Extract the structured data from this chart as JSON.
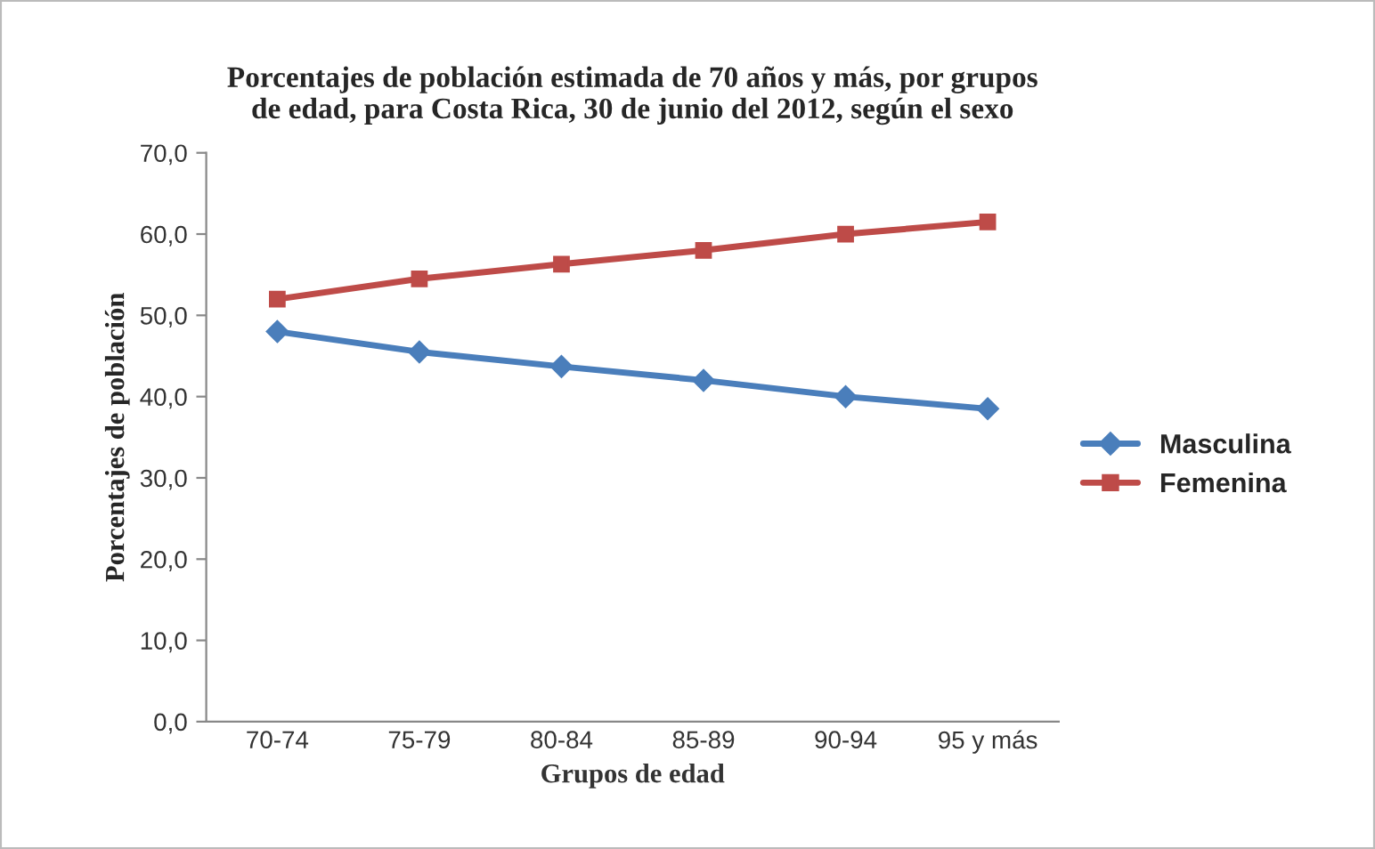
{
  "chart_data": {
    "type": "line",
    "title": "Porcentajes de población estimada de 70 años y más, por grupos\nde edad, para Costa Rica, 30 de junio del 2012, según el sexo",
    "xlabel": "Grupos de edad",
    "ylabel": "Porcentajes de población",
    "categories": [
      "70-74",
      "75-79",
      "80-84",
      "85-89",
      "90-94",
      "95 y más"
    ],
    "series": [
      {
        "name": "Masculina",
        "color": "#4a7ebb",
        "marker": "diamond",
        "values": [
          48.0,
          45.5,
          43.7,
          42.0,
          40.0,
          38.5
        ]
      },
      {
        "name": "Femenina",
        "color": "#be4b48",
        "marker": "square",
        "values": [
          52.0,
          54.5,
          56.3,
          58.0,
          60.0,
          61.5
        ]
      }
    ],
    "ylim": [
      0,
      70
    ],
    "yticks": [
      {
        "value": 0,
        "label": "0,0"
      },
      {
        "value": 10,
        "label": "10,0"
      },
      {
        "value": 20,
        "label": "20,0"
      },
      {
        "value": 30,
        "label": "30,0"
      },
      {
        "value": 40,
        "label": "40,0"
      },
      {
        "value": 50,
        "label": "50,0"
      },
      {
        "value": 60,
        "label": "60,0"
      },
      {
        "value": 70,
        "label": "70,0"
      }
    ],
    "grid": false,
    "legend": "right",
    "line_style": "solid"
  }
}
